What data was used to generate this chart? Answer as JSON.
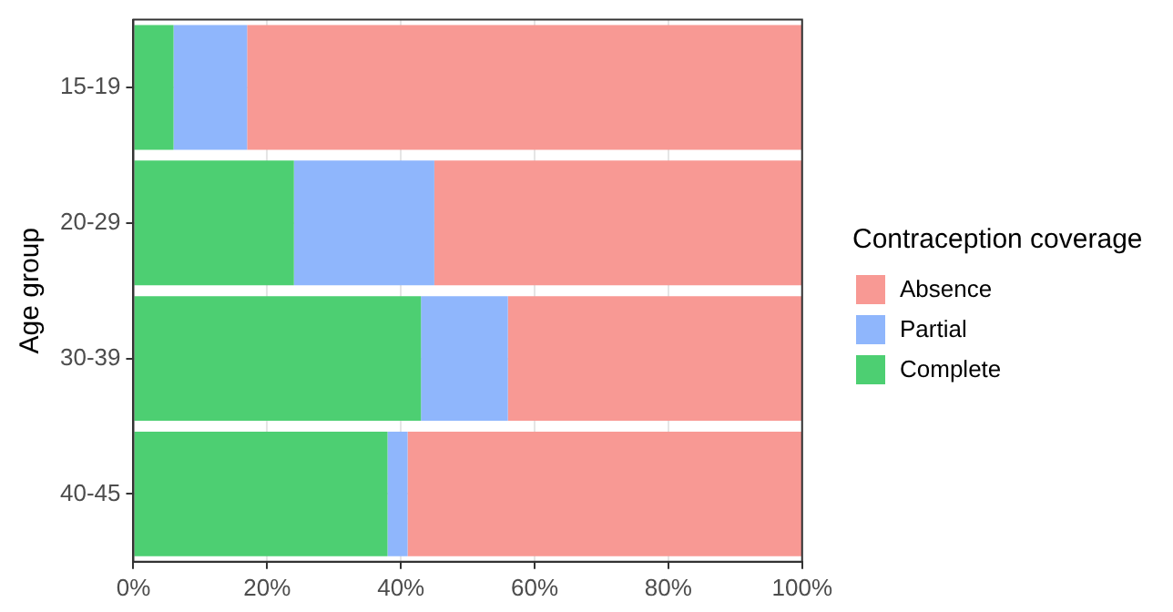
{
  "chart_data": {
    "type": "bar",
    "orientation": "horizontal",
    "stacked": true,
    "ylabel": "Age group",
    "legend_title": "Contraception coverage",
    "legend": "right",
    "categories": [
      "15-19",
      "20-29",
      "30-39",
      "40-45"
    ],
    "series": [
      {
        "name": "Complete",
        "color": "#4dcf72",
        "values": [
          6,
          24,
          43,
          38
        ]
      },
      {
        "name": "Partial",
        "color": "#8fb6fc",
        "values": [
          11,
          21,
          13,
          3
        ]
      },
      {
        "name": "Absence",
        "color": "#f89994",
        "values": [
          83,
          55,
          44,
          59
        ]
      }
    ],
    "xlim": [
      0,
      100
    ],
    "xticks": [
      {
        "value": 0,
        "label": "0%"
      },
      {
        "value": 20,
        "label": "20%"
      },
      {
        "value": 40,
        "label": "40%"
      },
      {
        "value": 60,
        "label": "60%"
      },
      {
        "value": 80,
        "label": "80%"
      },
      {
        "value": 100,
        "label": "100%"
      }
    ],
    "grid": true
  }
}
